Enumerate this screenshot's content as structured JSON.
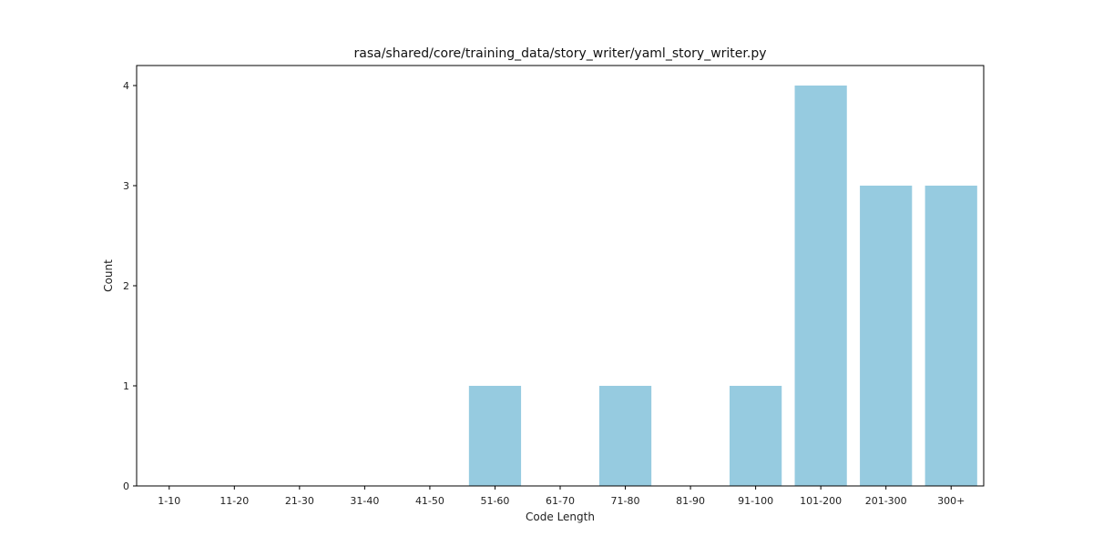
{
  "chart_data": {
    "type": "bar",
    "title": "rasa/shared/core/training_data/story_writer/yaml_story_writer.py",
    "xlabel": "Code Length",
    "ylabel": "Count",
    "categories": [
      "1-10",
      "11-20",
      "21-30",
      "31-40",
      "41-50",
      "51-60",
      "61-70",
      "71-80",
      "81-90",
      "91-100",
      "101-200",
      "201-300",
      "300+"
    ],
    "values": [
      0,
      0,
      0,
      0,
      0,
      1,
      0,
      1,
      0,
      1,
      4,
      3,
      3
    ],
    "ylim": [
      0,
      4.2
    ],
    "yticks": [
      0,
      1,
      2,
      3,
      4
    ],
    "grid": false,
    "legend": "none",
    "bar_color": "#96cbe0"
  }
}
